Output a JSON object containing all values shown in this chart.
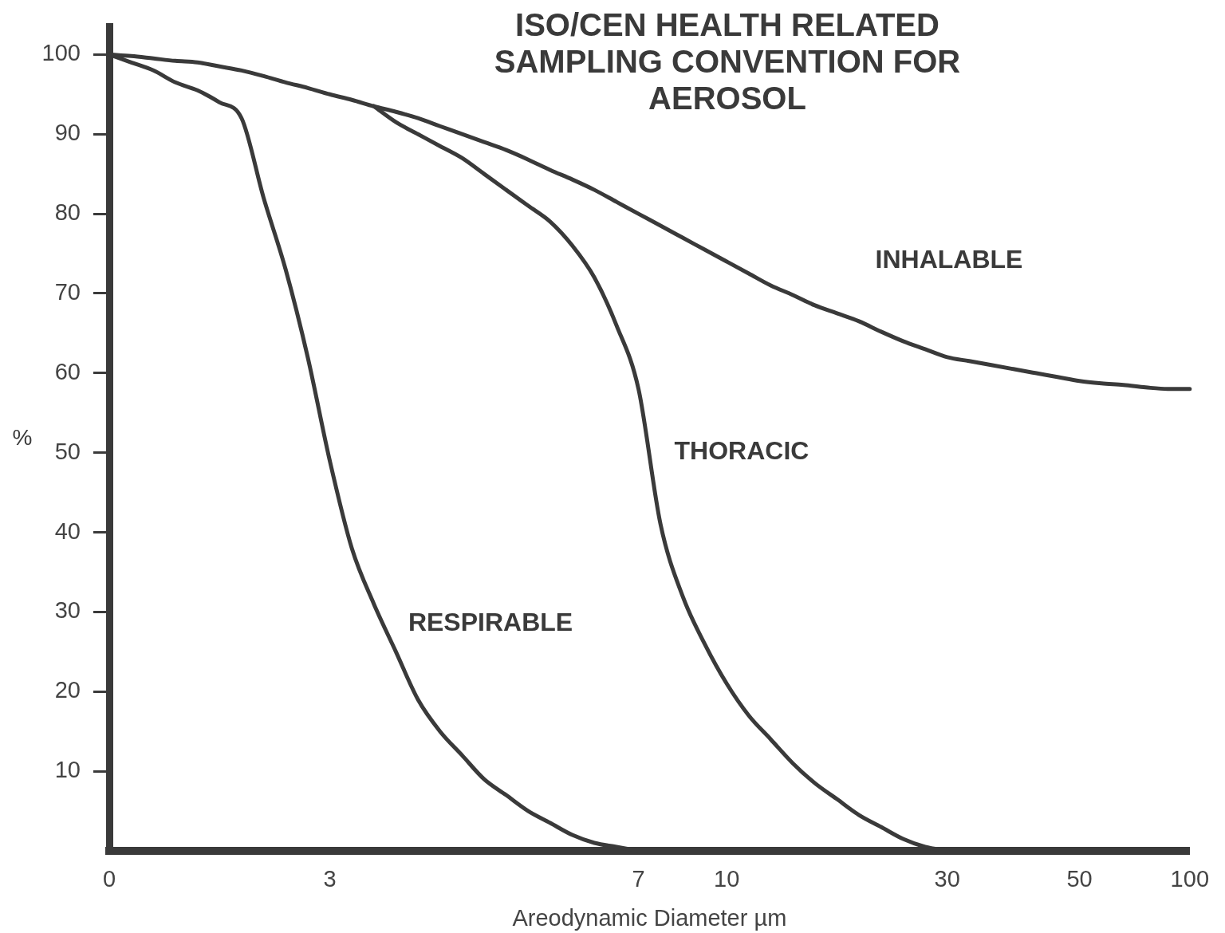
{
  "chart_data": {
    "type": "line",
    "title": "ISO/CEN HEALTH RELATED SAMPLING CONVENTION FOR AEROSOL",
    "xlabel": "Areodynamic Diameter µm",
    "ylabel": "%",
    "categories": [
      "0",
      null,
      null,
      null,
      null,
      null,
      null,
      null,
      null,
      null,
      "3",
      null,
      null,
      null,
      null,
      null,
      null,
      null,
      null,
      null,
      null,
      null,
      null,
      null,
      "7",
      null,
      null,
      null,
      "10",
      null,
      null,
      null,
      null,
      null,
      null,
      null,
      null,
      null,
      "30",
      null,
      null,
      null,
      null,
      null,
      "50",
      null,
      null,
      null,
      null,
      "100"
    ],
    "ylim": [
      0,
      103.5
    ],
    "yticks": [
      10,
      20,
      30,
      40,
      50,
      60,
      70,
      80,
      90,
      100
    ],
    "grid": false,
    "legend": false,
    "marker": "none",
    "line_style": "solid",
    "series": [
      {
        "name": "INHALABLE",
        "color": "#3a3a3a",
        "values": [
          100,
          99.8,
          99.5,
          99.2,
          99,
          98.5,
          98,
          97.3,
          96.5,
          95.8,
          95,
          94.3,
          93.5,
          92.8,
          92,
          91,
          90,
          89,
          88,
          86.8,
          85.5,
          84.3,
          83,
          81.5,
          80,
          78.5,
          77,
          75.5,
          74,
          72.5,
          71,
          69.8,
          68.5,
          67.5,
          66.5,
          65.2,
          64,
          63,
          62,
          61.5,
          61,
          60.5,
          60,
          59.5,
          59,
          58.7,
          58.5,
          58.2,
          58,
          58
        ]
      },
      {
        "name": "THORACIC",
        "color": "#3a3a3a",
        "values": [
          null,
          null,
          null,
          null,
          null,
          null,
          null,
          null,
          null,
          null,
          null,
          null,
          93.5,
          91.5,
          90,
          88.5,
          87,
          85,
          83,
          81,
          79,
          76,
          72,
          66,
          58,
          41,
          32,
          26,
          21,
          17,
          14,
          11,
          8.5,
          6.5,
          4.5,
          3,
          1.5,
          0.5,
          0,
          null,
          null,
          null,
          null,
          null,
          null,
          null,
          null,
          null,
          null,
          null
        ]
      },
      {
        "name": "RESPIRABLE",
        "color": "#3a3a3a",
        "values": [
          100,
          99,
          98,
          96.5,
          95.5,
          94,
          92,
          82,
          73,
          62,
          49,
          38,
          31,
          25,
          19,
          15,
          12,
          9,
          7,
          5,
          3.5,
          2,
          1,
          0.5,
          0,
          null,
          null,
          null,
          null,
          null,
          null,
          null,
          null,
          null,
          null,
          null,
          null,
          null,
          null,
          null,
          null,
          null,
          null,
          null,
          null,
          null,
          null,
          null,
          null,
          null
        ]
      }
    ]
  }
}
